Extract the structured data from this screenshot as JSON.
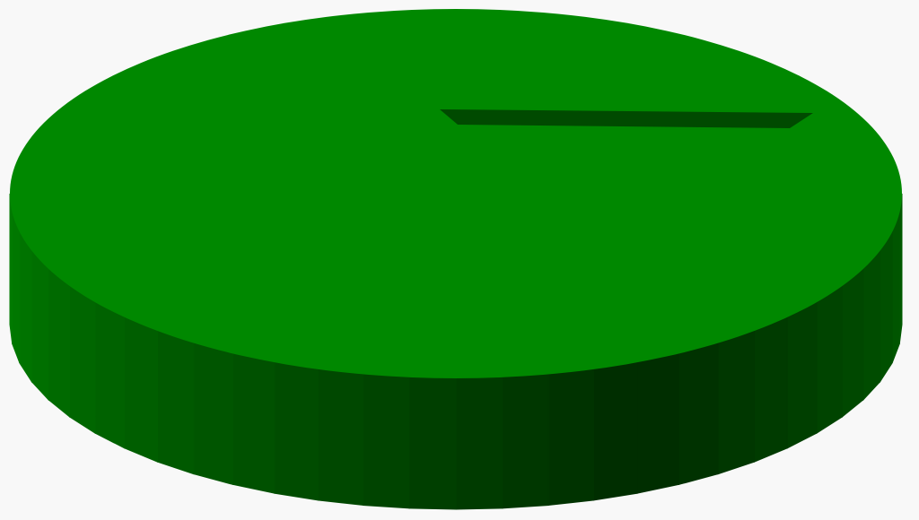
{
  "chart_data": {
    "type": "pie",
    "style": "3d",
    "title": "",
    "legend": "none",
    "slices": [
      {
        "value": 100,
        "color": "#008800"
      }
    ]
  },
  "colors": {
    "background": "#f8f8f8",
    "top_face": "#008800",
    "side_light": "#007a00",
    "side_dark": "#002c00",
    "seam": "#004a00"
  }
}
